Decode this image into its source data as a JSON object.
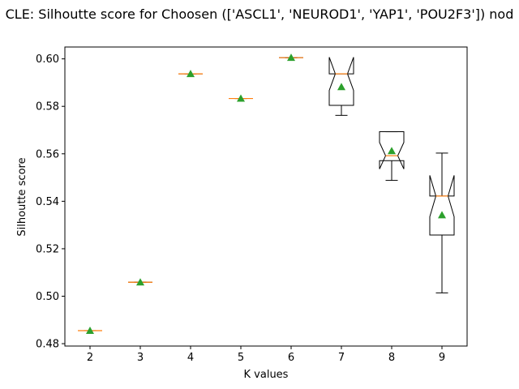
{
  "chart_data": {
    "type": "box",
    "title": "CLE: Silhoutte score for Choosen (['ASCL1', 'NEUROD1', 'YAP1', 'POU2F3']) nod",
    "xlabel": "K values",
    "ylabel": "Silhoutte score",
    "xlim": [
      1.5,
      9.5
    ],
    "ylim": [
      0.479,
      0.605
    ],
    "xticks": [
      2,
      3,
      4,
      5,
      6,
      7,
      8,
      9
    ],
    "yticks": [
      0.48,
      0.5,
      0.52,
      0.54,
      0.56,
      0.58,
      0.6
    ],
    "ytick_labels": [
      "0.48",
      "0.50",
      "0.52",
      "0.54",
      "0.56",
      "0.58",
      "0.60"
    ],
    "grid": false,
    "notched": true,
    "show_means": true,
    "boxes": [
      {
        "k": 2,
        "whislo": 0.4855,
        "q1": 0.4855,
        "med": 0.4855,
        "q3": 0.4855,
        "whishi": 0.4855,
        "mean": 0.4855
      },
      {
        "k": 3,
        "whislo": 0.5059,
        "q1": 0.5059,
        "med": 0.5059,
        "q3": 0.5059,
        "whishi": 0.5059,
        "mean": 0.5059
      },
      {
        "k": 4,
        "whislo": 0.5937,
        "q1": 0.5937,
        "med": 0.5937,
        "q3": 0.5937,
        "whishi": 0.5937,
        "mean": 0.5937
      },
      {
        "k": 5,
        "whislo": 0.5833,
        "q1": 0.5833,
        "med": 0.5833,
        "q3": 0.5833,
        "whishi": 0.5833,
        "mean": 0.5833
      },
      {
        "k": 6,
        "whislo": 0.6005,
        "q1": 0.6005,
        "med": 0.6005,
        "q3": 0.6005,
        "whishi": 0.6005,
        "mean": 0.6005
      },
      {
        "k": 7,
        "whislo": 0.5762,
        "q1": 0.5804,
        "med": 0.5937,
        "q3": 0.5937,
        "whishi": 0.5937,
        "mean": 0.5882,
        "notch_lo": 0.5867,
        "notch_hi": 0.6007
      },
      {
        "k": 8,
        "whislo": 0.5488,
        "q1": 0.5571,
        "med": 0.5592,
        "q3": 0.5693,
        "whishi": 0.5693,
        "mean": 0.5612,
        "notch_lo": 0.5536,
        "notch_hi": 0.5648
      },
      {
        "k": 9,
        "whislo": 0.5014,
        "q1": 0.5258,
        "med": 0.5422,
        "q3": 0.5422,
        "whishi": 0.5603,
        "mean": 0.5342,
        "notch_lo": 0.5335,
        "notch_hi": 0.5509
      }
    ],
    "colors": {
      "box": "#000000",
      "median": "#ff7f0e",
      "mean": "#2ca02c"
    }
  }
}
